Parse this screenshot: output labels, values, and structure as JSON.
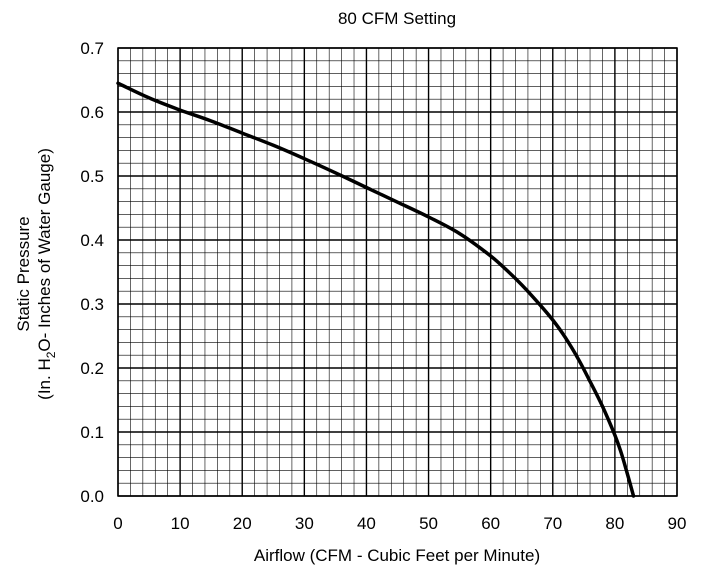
{
  "chart_data": {
    "type": "line",
    "title": "80 CFM Setting",
    "xlabel": "Airflow (CFM - Cubic Feet per Minute)",
    "ylabel": {
      "line1": "Static Pressure",
      "line2_prefix": "(In. H",
      "line2_sub": "2",
      "line2_suffix": "O- Inches of Water Gauge)"
    },
    "xlim": [
      0,
      90
    ],
    "ylim": [
      0,
      0.7
    ],
    "x_ticks": [
      "0",
      "10",
      "20",
      "30",
      "40",
      "50",
      "60",
      "70",
      "80",
      "90"
    ],
    "y_ticks": [
      "0.0",
      "0.1",
      "0.2",
      "0.3",
      "0.4",
      "0.5",
      "0.6",
      "0.7"
    ],
    "grid": true,
    "minor_grid_divisions": 5,
    "series": [
      {
        "color": "#000000",
        "x": [
          0,
          5,
          10,
          15,
          20,
          25,
          30,
          35,
          40,
          45,
          50,
          55,
          60,
          63,
          65,
          68,
          70,
          72,
          74,
          76,
          78,
          80,
          81,
          82,
          83
        ],
        "y": [
          0.645,
          0.622,
          0.603,
          0.586,
          0.567,
          0.548,
          0.527,
          0.505,
          0.482,
          0.459,
          0.436,
          0.41,
          0.375,
          0.349,
          0.33,
          0.298,
          0.275,
          0.248,
          0.216,
          0.179,
          0.14,
          0.095,
          0.068,
          0.035,
          0.0
        ]
      }
    ]
  }
}
